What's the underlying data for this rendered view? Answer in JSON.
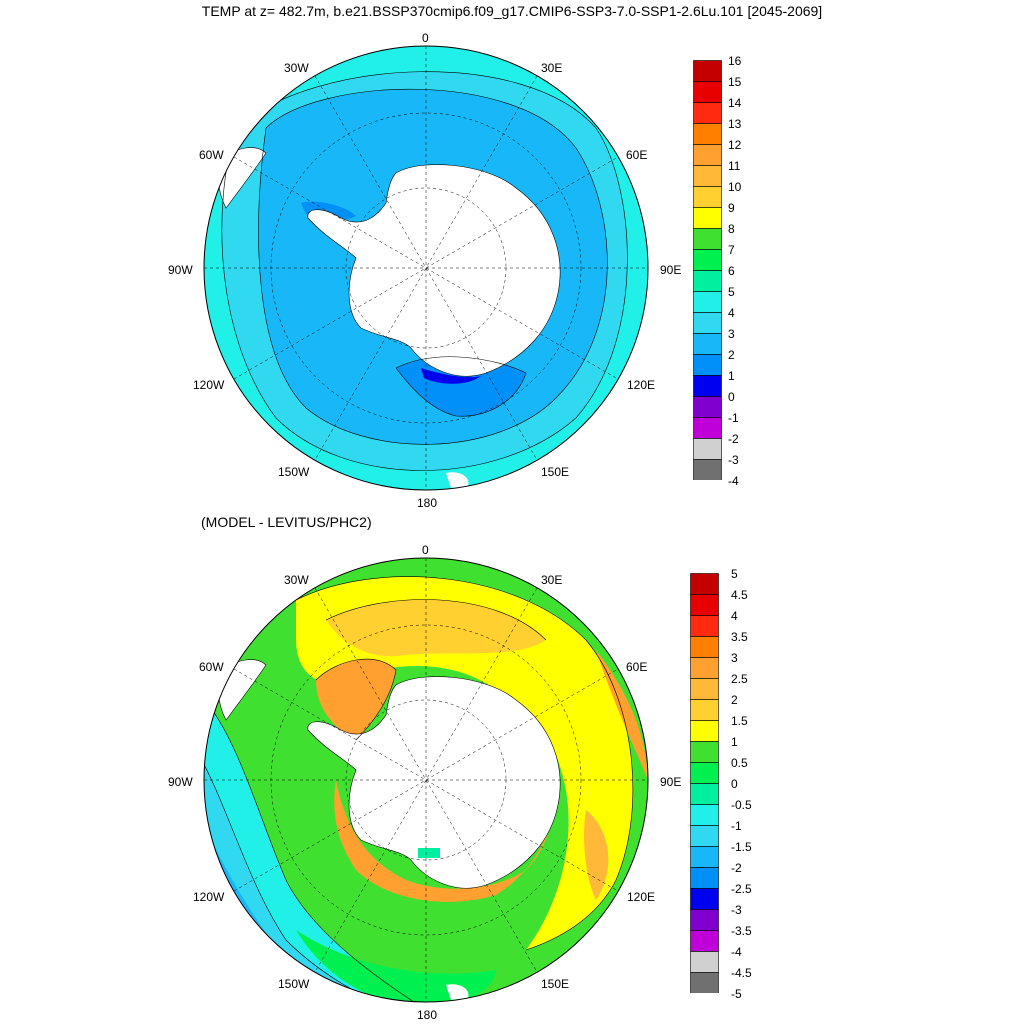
{
  "title": "TEMP at z= 482.7m, b.e21.BSSP370cmip6.f09_g17.CMIP6-SSP3-7.0-SSP1-2.6Lu.101 [2045-2069]",
  "top_panel": {
    "lon_labels": {
      "n": "0",
      "nne": "30E",
      "ene": "60E",
      "e": "90E",
      "ese": "120E",
      "sse": "150E",
      "s": "180",
      "ssw": "150W",
      "wsw": "120W",
      "w": "90W",
      "wnw": "60W",
      "nnw": "30W"
    },
    "colorbar": {
      "ticks": [
        "16",
        "15",
        "14",
        "13",
        "12",
        "11",
        "10",
        "9",
        "8",
        "7",
        "6",
        "5",
        "4",
        "3",
        "2",
        "1",
        "0",
        "-1",
        "-2",
        "-3",
        "-4"
      ],
      "colors": [
        "#c40000",
        "#e80000",
        "#ff2a10",
        "#ff8000",
        "#ffa030",
        "#ffb838",
        "#ffd030",
        "#ffff00",
        "#40e030",
        "#00f050",
        "#00f0a0",
        "#20f0e8",
        "#30d8f0",
        "#18b8f8",
        "#0090f8",
        "#0000f0",
        "#8000d0",
        "#c000d8",
        "#d0d0d0",
        "#707070"
      ]
    }
  },
  "bottom_panel": {
    "subtitle": "(MODEL - LEVITUS/PHC2)",
    "lon_labels": {
      "n": "0",
      "nne": "30E",
      "ene": "60E",
      "e": "90E",
      "ese": "120E",
      "sse": "150E",
      "s": "180",
      "ssw": "150W",
      "wsw": "120W",
      "w": "90W",
      "wnw": "60W",
      "nnw": "30W"
    },
    "colorbar": {
      "ticks": [
        "5",
        "4.5",
        "4",
        "3.5",
        "3",
        "2.5",
        "2",
        "1.5",
        "1",
        "0.5",
        "0",
        "-0.5",
        "-1",
        "-1.5",
        "-2",
        "-2.5",
        "-3",
        "-3.5",
        "-4",
        "-4.5",
        "-5"
      ],
      "colors": [
        "#c40000",
        "#e80000",
        "#ff2a10",
        "#ff8000",
        "#ffa030",
        "#ffb838",
        "#ffd030",
        "#ffff00",
        "#40e030",
        "#00f050",
        "#00f0a0",
        "#20f0e8",
        "#30d8f0",
        "#18b8f8",
        "#0090f8",
        "#0000f0",
        "#8000d0",
        "#c000d8",
        "#d0d0d0",
        "#707070"
      ]
    }
  }
}
